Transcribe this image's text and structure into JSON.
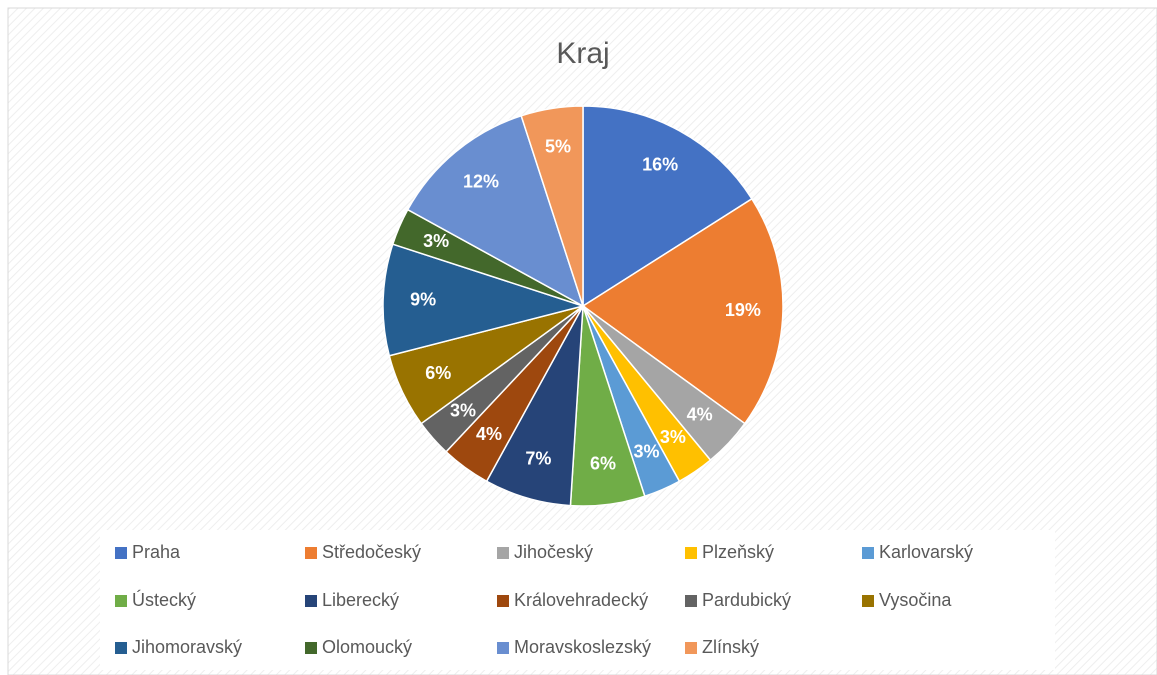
{
  "chart_data": {
    "type": "pie",
    "title": "Kraj",
    "categories": [
      "Praha",
      "Středočeský",
      "Jihočeský",
      "Plzeňský",
      "Karlovarský",
      "Ústecký",
      "Liberecký",
      "Královehradecký",
      "Pardubický",
      "Vysočina",
      "Jihomoravský",
      "Olomoucký",
      "Moravskoslezský",
      "Zlínský"
    ],
    "values": [
      16,
      19,
      4,
      3,
      3,
      6,
      7,
      4,
      3,
      6,
      9,
      3,
      12,
      5
    ],
    "value_labels": [
      "16%",
      "19%",
      "4%",
      "3%",
      "3%",
      "6%",
      "7%",
      "4%",
      "3%",
      "6%",
      "9%",
      "3%",
      "12%",
      "5%"
    ],
    "colors": [
      "#4472c4",
      "#ed7d31",
      "#a5a5a5",
      "#ffc000",
      "#5b9bd5",
      "#70ad47",
      "#264478",
      "#9e480e",
      "#636363",
      "#997300",
      "#255e91",
      "#43682b",
      "#698ed0",
      "#f1975a"
    ],
    "legend": "bottom"
  }
}
